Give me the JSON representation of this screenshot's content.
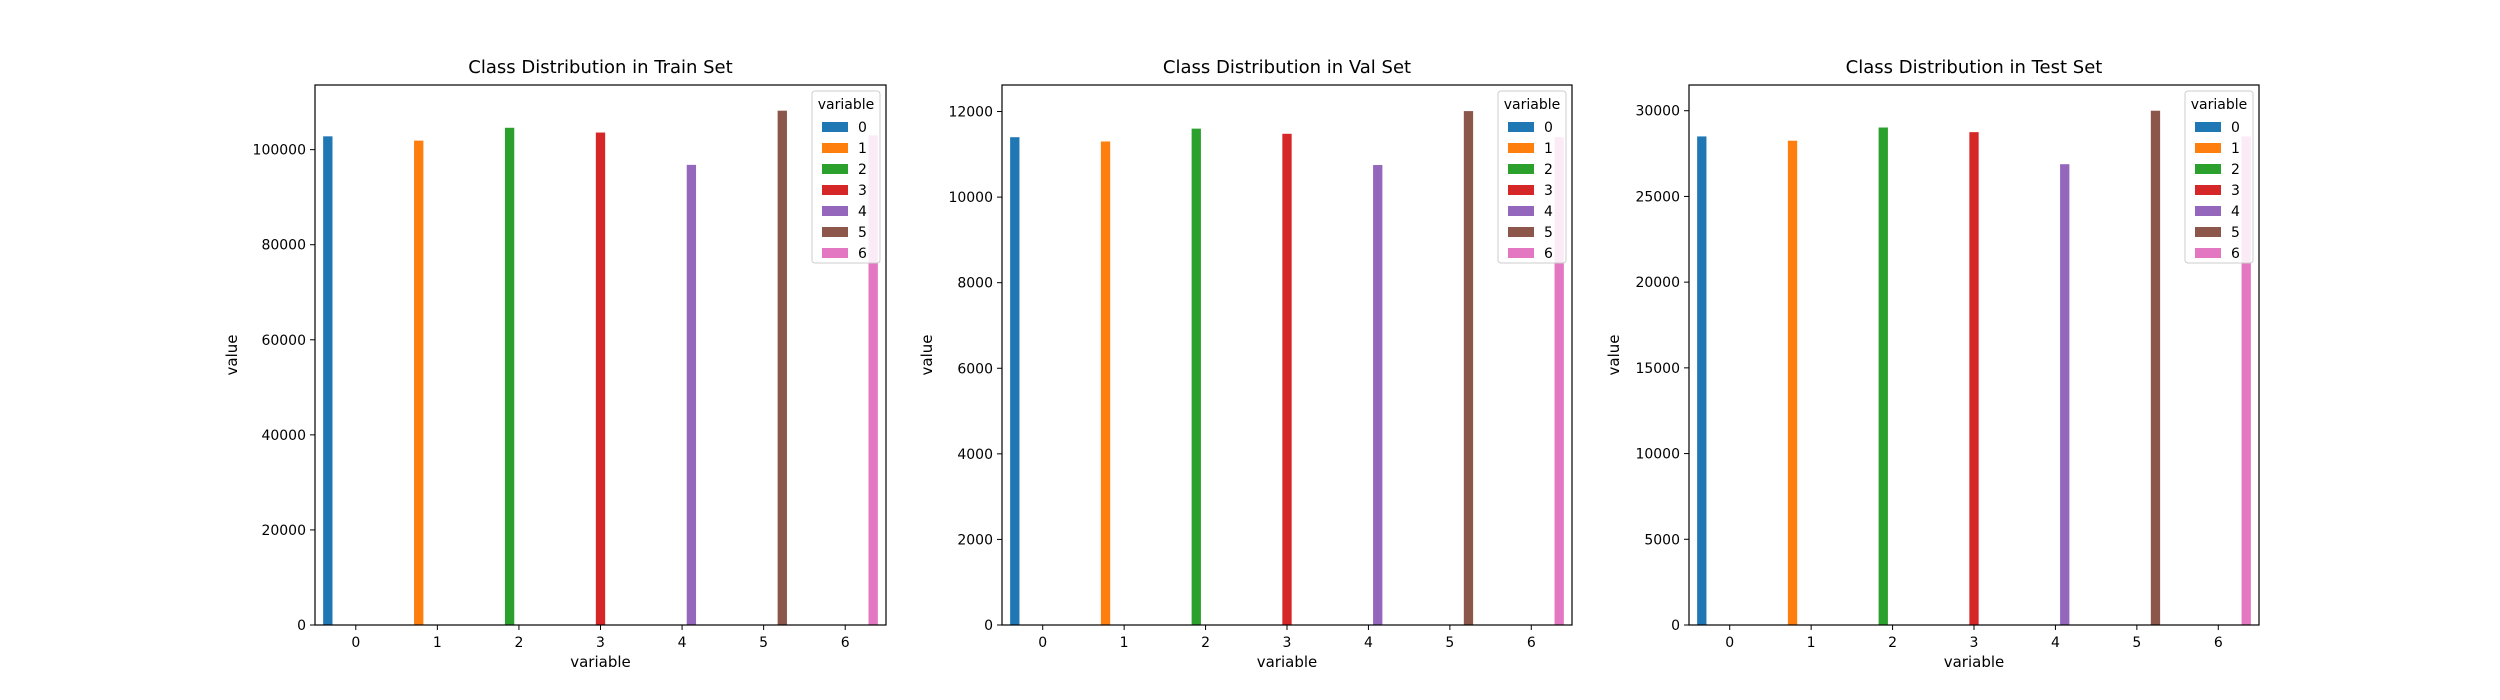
{
  "chart_data": [
    {
      "type": "bar",
      "title": "Class Distribution in Train Set",
      "xlabel": "variable",
      "ylabel": "value",
      "categories": [
        "0",
        "1",
        "2",
        "3",
        "4",
        "5",
        "6"
      ],
      "values": [
        102800,
        101900,
        104600,
        103600,
        96800,
        108200,
        103000
      ],
      "ylim": [
        0,
        113600
      ],
      "yticks": [
        0,
        20000,
        40000,
        60000,
        80000,
        100000
      ],
      "legend": {
        "title": "variable",
        "position": "top-right"
      },
      "grid": false
    },
    {
      "type": "bar",
      "title": "Class Distribution in Val Set",
      "xlabel": "variable",
      "ylabel": "value",
      "categories": [
        "0",
        "1",
        "2",
        "3",
        "4",
        "5",
        "6"
      ],
      "values": [
        11400,
        11300,
        11600,
        11480,
        10750,
        12010,
        11400
      ],
      "ylim": [
        0,
        12620
      ],
      "yticks": [
        0,
        2000,
        4000,
        6000,
        8000,
        10000,
        12000
      ],
      "legend": {
        "title": "variable",
        "position": "top-right"
      },
      "grid": false
    },
    {
      "type": "bar",
      "title": "Class Distribution in Test Set",
      "xlabel": "variable",
      "ylabel": "value",
      "categories": [
        "0",
        "1",
        "2",
        "3",
        "4",
        "5",
        "6"
      ],
      "values": [
        28500,
        28250,
        29020,
        28750,
        26880,
        30000,
        28500
      ],
      "ylim": [
        0,
        31500
      ],
      "yticks": [
        0,
        5000,
        10000,
        15000,
        20000,
        25000,
        30000
      ],
      "legend": {
        "title": "variable",
        "position": "top-right"
      },
      "grid": false
    }
  ],
  "colors": [
    "#1f77b4",
    "#ff7f0e",
    "#2ca02c",
    "#d62728",
    "#9467bd",
    "#8c564b",
    "#e377c2"
  ]
}
